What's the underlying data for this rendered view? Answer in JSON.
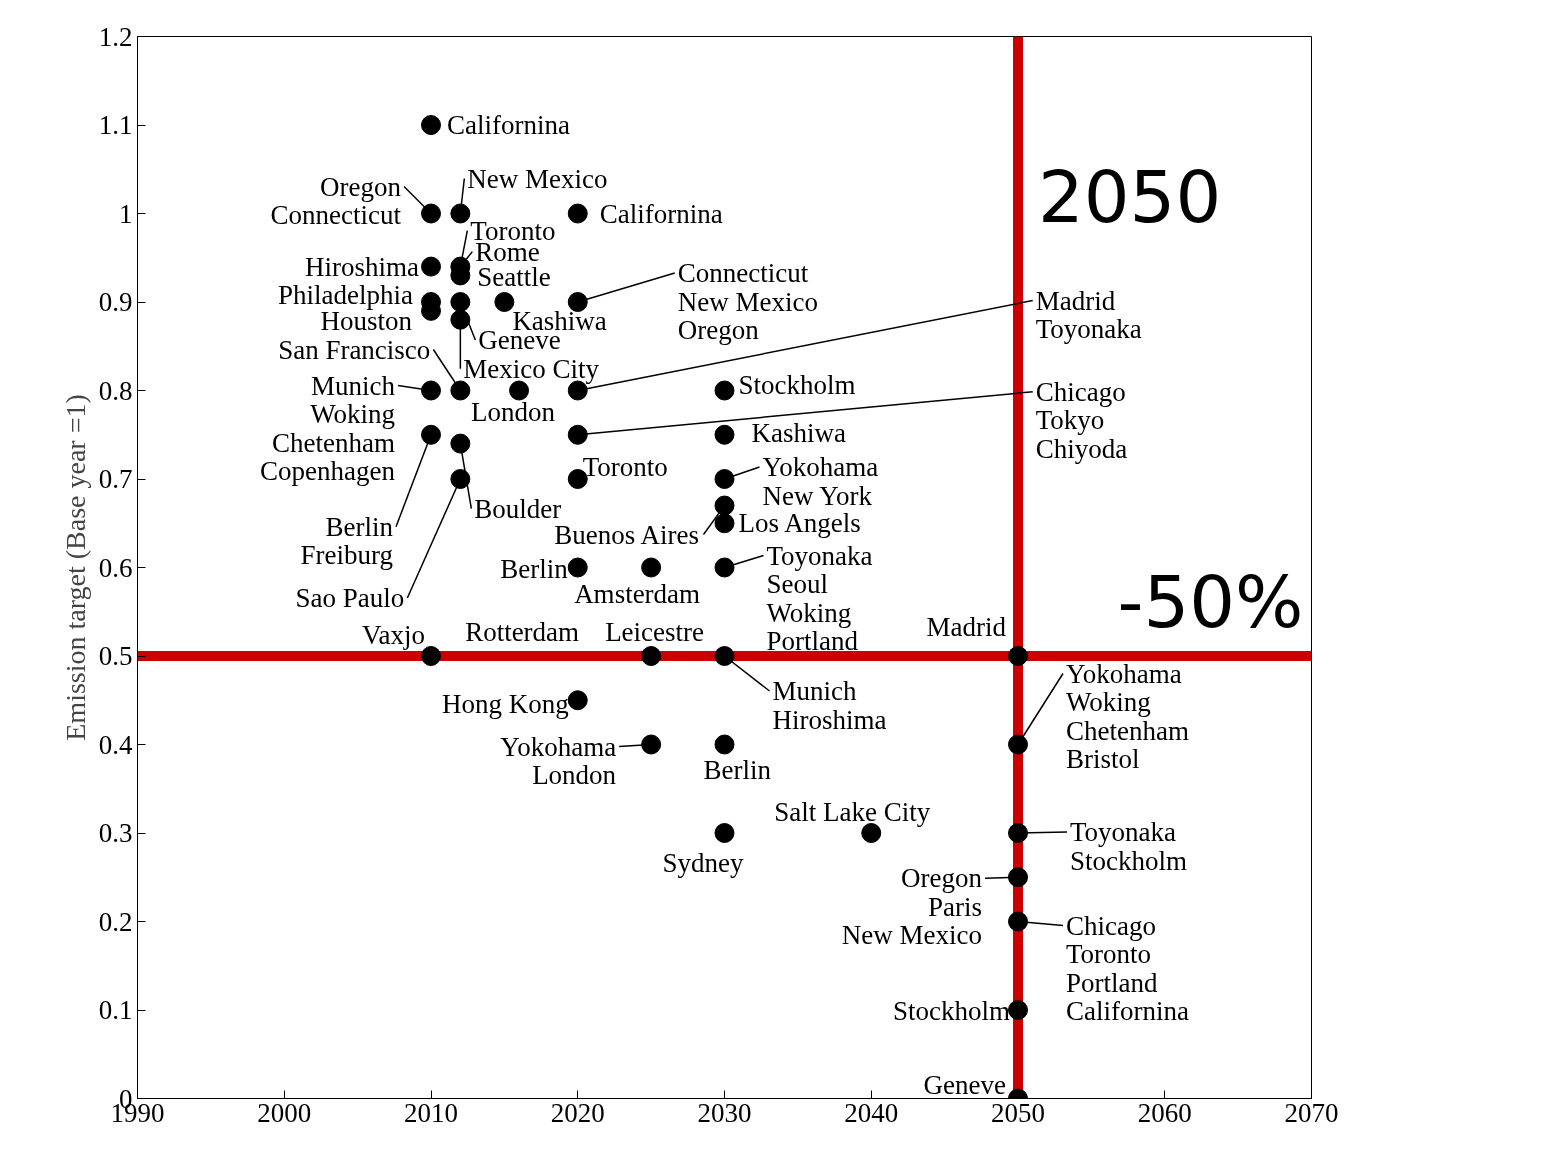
{
  "chart_data": {
    "type": "scatter",
    "ylabel": "Emission target (Base year =1)",
    "xlim": [
      1990,
      2070
    ],
    "xticks": [
      1990,
      2000,
      2010,
      2020,
      2030,
      2040,
      2050,
      2060,
      2070
    ],
    "ylim": [
      0,
      1.2
    ],
    "yticks": [
      0,
      0.1,
      0.2,
      0.3,
      0.4,
      0.5,
      0.6,
      0.7,
      0.8,
      0.9,
      1,
      1.1,
      1.2
    ],
    "grid": false,
    "marker": "circle",
    "series": [
      {
        "color": "#000000",
        "x": [
          2010,
          2010,
          2012,
          2020,
          2010,
          2012,
          2012,
          2010,
          2010,
          2012,
          2012,
          2015,
          2020,
          2010,
          2012,
          2016,
          2020,
          2030,
          2010,
          2012,
          2012,
          2020,
          2020,
          2030,
          2030,
          2030,
          2030,
          2020,
          2025,
          2030,
          2010,
          2025,
          2030,
          2050,
          2020,
          2025,
          2030,
          2050,
          2040,
          2030,
          2050,
          2050,
          2050,
          2050,
          2050
        ],
        "values": [
          1.1,
          1,
          1,
          1,
          0.94,
          0.94,
          0.93,
          0.9,
          0.89,
          0.9,
          0.88,
          0.9,
          0.9,
          0.8,
          0.8,
          0.8,
          0.8,
          0.8,
          0.75,
          0.74,
          0.7,
          0.75,
          0.7,
          0.75,
          0.7,
          0.67,
          0.65,
          0.6,
          0.6,
          0.6,
          0.5,
          0.5,
          0.5,
          0.5,
          0.45,
          0.4,
          0.4,
          0.4,
          0.3,
          0.3,
          0.3,
          0.25,
          0.2,
          0.1,
          0
        ]
      }
    ],
    "ref_lines": [
      {
        "axis": "x",
        "value": 2050,
        "label": "2050",
        "color": "#cc0000"
      },
      {
        "axis": "y",
        "value": 0.5,
        "color": "#cc0000"
      }
    ],
    "annotations": [
      {
        "text": "Californina",
        "x": 2010,
        "y": 1.1
      },
      {
        "text": "Oregon\nConnecticut",
        "x": 2010,
        "y": 1
      },
      {
        "text": "New Mexico",
        "x": 2012,
        "y": 1
      },
      {
        "text": "Californina",
        "x": 2020,
        "y": 1
      },
      {
        "text": "Hiroshima",
        "x": 2010,
        "y": 0.94
      },
      {
        "text": "Toronto",
        "x": 2012,
        "y": 0.94
      },
      {
        "text": "Rome",
        "x": 2012,
        "y": 0.94
      },
      {
        "text": "Seattle",
        "x": 2012,
        "y": 0.93
      },
      {
        "text": "Philadelphia",
        "x": 2010,
        "y": 0.9
      },
      {
        "text": "Houston",
        "x": 2010,
        "y": 0.89
      },
      {
        "text": "Geneve",
        "x": 2012,
        "y": 0.9
      },
      {
        "text": "Mexico City",
        "x": 2012,
        "y": 0.88
      },
      {
        "text": "Kashiwa",
        "x": 2015,
        "y": 0.9
      },
      {
        "text": "Connecticut\nNew Mexico\nOregon",
        "x": 2020,
        "y": 0.9
      },
      {
        "text": "San Francisco",
        "x": 2012,
        "y": 0.8
      },
      {
        "text": "London",
        "x": 2016,
        "y": 0.8
      },
      {
        "text": "Madrid\nToyonaka",
        "x": 2020,
        "y": 0.8
      },
      {
        "text": "Stockholm",
        "x": 2030,
        "y": 0.8
      },
      {
        "text": "Munich\nWoking\nChetenham\nCopenhagen",
        "x": 2010,
        "y": 0.8
      },
      {
        "text": "Berlin\nFreiburg",
        "x": 2010,
        "y": 0.75
      },
      {
        "text": "Boulder",
        "x": 2012,
        "y": 0.74
      },
      {
        "text": "Sao Paulo",
        "x": 2012,
        "y": 0.7
      },
      {
        "text": "Chicago\nTokyo\nChiyoda",
        "x": 2020,
        "y": 0.75
      },
      {
        "text": "Toronto",
        "x": 2020,
        "y": 0.7
      },
      {
        "text": "Kashiwa",
        "x": 2030,
        "y": 0.75
      },
      {
        "text": "Yokohama\nNew York",
        "x": 2030,
        "y": 0.7
      },
      {
        "text": "Buenos Aires",
        "x": 2030,
        "y": 0.67
      },
      {
        "text": "Los Angels",
        "x": 2030,
        "y": 0.65
      },
      {
        "text": "Berlin",
        "x": 2020,
        "y": 0.6
      },
      {
        "text": "Amsterdam",
        "x": 2025,
        "y": 0.6
      },
      {
        "text": "Toyonaka\nSeoul\nWoking\nPortland",
        "x": 2030,
        "y": 0.6
      },
      {
        "text": "Rotterdam",
        "x": 2025,
        "y": 0.5
      },
      {
        "text": "Leicestre",
        "x": 2025,
        "y": 0.5
      },
      {
        "text": "Vaxjo",
        "x": 2010,
        "y": 0.5
      },
      {
        "text": "Munich\nHiroshima",
        "x": 2030,
        "y": 0.5
      },
      {
        "text": "Madrid",
        "x": 2050,
        "y": 0.5
      },
      {
        "text": "Hong Kong",
        "x": 2020,
        "y": 0.45
      },
      {
        "text": "Yokohama\nLondon",
        "x": 2025,
        "y": 0.4
      },
      {
        "text": "Berlin",
        "x": 2030,
        "y": 0.4
      },
      {
        "text": "Yokohama\nWoking\nChetenham\nBristol",
        "x": 2050,
        "y": 0.4
      },
      {
        "text": "Salt Lake City",
        "x": 2040,
        "y": 0.3
      },
      {
        "text": "Sydney",
        "x": 2030,
        "y": 0.3
      },
      {
        "text": "Toyonaka\nStockholm",
        "x": 2050,
        "y": 0.3
      },
      {
        "text": "Oregon\nParis\nNew Mexico",
        "x": 2050,
        "y": 0.25
      },
      {
        "text": "Chicago\nToronto\nPortland\nCalifornina",
        "x": 2050,
        "y": 0.2
      },
      {
        "text": "Stockholm",
        "x": 2050,
        "y": 0.1
      },
      {
        "text": "Geneve",
        "x": 2050,
        "y": 0
      },
      {
        "text": "-50%",
        "x": 2070,
        "y": 0.5
      }
    ]
  }
}
